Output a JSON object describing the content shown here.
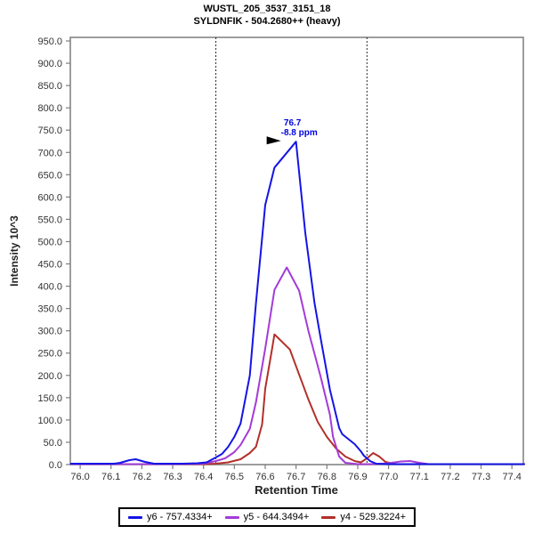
{
  "chart_data": {
    "type": "line",
    "title": "WUSTL_205_3537_3151_18",
    "subtitle": "SYLDNFIK - 504.2680++ (heavy)",
    "xlabel": "Retention Time",
    "ylabel": "Intensity 10^3",
    "xlim": [
      75.968,
      77.437
    ],
    "ylim": [
      0,
      958
    ],
    "tick_decimals": 1,
    "grid": false,
    "legend_position": "bottom",
    "x_ticks": [
      76.0,
      76.1,
      76.2,
      76.3,
      76.4,
      76.5,
      76.6,
      76.7,
      76.8,
      76.9,
      77.0,
      77.1,
      77.2,
      77.3,
      77.4
    ],
    "y_ticks": [
      0,
      50,
      100,
      150,
      200,
      250,
      300,
      350,
      400,
      450,
      500,
      550,
      600,
      650,
      700,
      750,
      800,
      850,
      900,
      950
    ],
    "peak_boundaries": {
      "x1": 76.44,
      "x2": 76.93,
      "style": "dashed",
      "color": "#2a2a2a"
    },
    "annotation": {
      "text": "76.7",
      "subtext": "-8.8 ppm",
      "x": 76.7,
      "y": 724,
      "color": "#0000e0",
      "arrow_color": "#000000"
    },
    "series": [
      {
        "name": "y6 - 757.4334+",
        "color": "#1414e6",
        "points": [
          [
            75.97,
            2
          ],
          [
            76.04,
            2
          ],
          [
            76.08,
            2
          ],
          [
            76.11,
            2
          ],
          [
            76.13,
            4
          ],
          [
            76.16,
            10
          ],
          [
            76.18,
            12
          ],
          [
            76.21,
            6
          ],
          [
            76.24,
            2
          ],
          [
            76.28,
            2
          ],
          [
            76.33,
            2
          ],
          [
            76.38,
            3
          ],
          [
            76.41,
            5
          ],
          [
            76.44,
            16
          ],
          [
            76.46,
            24
          ],
          [
            76.48,
            40
          ],
          [
            76.5,
            62
          ],
          [
            76.52,
            92
          ],
          [
            76.55,
            200
          ],
          [
            76.57,
            362
          ],
          [
            76.6,
            582
          ],
          [
            76.63,
            666
          ],
          [
            76.7,
            724
          ],
          [
            76.73,
            520
          ],
          [
            76.76,
            362
          ],
          [
            76.78,
            282
          ],
          [
            76.81,
            168
          ],
          [
            76.84,
            82
          ],
          [
            76.85,
            68
          ],
          [
            76.89,
            46
          ],
          [
            76.91,
            30
          ],
          [
            76.92,
            20
          ],
          [
            76.94,
            8
          ],
          [
            76.96,
            2
          ],
          [
            77.0,
            1
          ],
          [
            77.1,
            1
          ],
          [
            77.2,
            1
          ],
          [
            77.3,
            1
          ],
          [
            77.44,
            1
          ]
        ]
      },
      {
        "name": "y5 - 644.3494+",
        "color": "#a43bd8",
        "points": [
          [
            75.97,
            1
          ],
          [
            76.1,
            1
          ],
          [
            76.2,
            1
          ],
          [
            76.3,
            1
          ],
          [
            76.4,
            2
          ],
          [
            76.44,
            8
          ],
          [
            76.47,
            14
          ],
          [
            76.5,
            28
          ],
          [
            76.52,
            44
          ],
          [
            76.55,
            80
          ],
          [
            76.57,
            140
          ],
          [
            76.6,
            260
          ],
          [
            76.63,
            392
          ],
          [
            76.67,
            442
          ],
          [
            76.71,
            390
          ],
          [
            76.74,
            300
          ],
          [
            76.78,
            196
          ],
          [
            76.81,
            112
          ],
          [
            76.82,
            62
          ],
          [
            76.84,
            18
          ],
          [
            76.86,
            4
          ],
          [
            76.9,
            1
          ],
          [
            76.94,
            1
          ],
          [
            76.98,
            2
          ],
          [
            77.01,
            4
          ],
          [
            77.04,
            7
          ],
          [
            77.07,
            8
          ],
          [
            77.1,
            4
          ],
          [
            77.13,
            1
          ],
          [
            77.2,
            1
          ],
          [
            77.3,
            1
          ],
          [
            77.44,
            1
          ]
        ]
      },
      {
        "name": "y4 - 529.3224+",
        "color": "#b2302a",
        "points": [
          [
            75.97,
            1
          ],
          [
            76.1,
            1
          ],
          [
            76.2,
            1
          ],
          [
            76.3,
            1
          ],
          [
            76.4,
            1
          ],
          [
            76.44,
            2
          ],
          [
            76.48,
            5
          ],
          [
            76.52,
            12
          ],
          [
            76.55,
            26
          ],
          [
            76.57,
            40
          ],
          [
            76.59,
            90
          ],
          [
            76.6,
            170
          ],
          [
            76.62,
            250
          ],
          [
            76.63,
            292
          ],
          [
            76.68,
            258
          ],
          [
            76.71,
            202
          ],
          [
            76.74,
            146
          ],
          [
            76.77,
            96
          ],
          [
            76.8,
            62
          ],
          [
            76.83,
            36
          ],
          [
            76.86,
            18
          ],
          [
            76.89,
            8
          ],
          [
            76.91,
            5
          ],
          [
            76.93,
            14
          ],
          [
            76.95,
            26
          ],
          [
            76.97,
            18
          ],
          [
            76.99,
            6
          ],
          [
            77.02,
            1
          ],
          [
            77.1,
            1
          ],
          [
            77.2,
            1
          ],
          [
            77.3,
            1
          ],
          [
            77.44,
            1
          ]
        ]
      }
    ],
    "style": {
      "plot_border_color": "#7d7d7d",
      "tick_label_color": "#333333",
      "axis_tick_color": "#7d7d7d"
    }
  }
}
